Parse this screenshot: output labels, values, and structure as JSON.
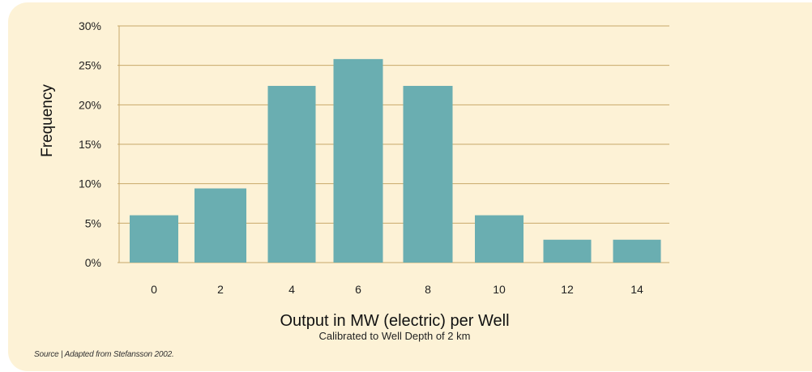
{
  "chart_data": {
    "type": "bar",
    "categories": [
      "0",
      "2",
      "4",
      "6",
      "8",
      "10",
      "12",
      "14"
    ],
    "values": [
      6,
      9.4,
      22.4,
      25.8,
      22.4,
      6,
      2.9,
      2.9
    ],
    "ylim": [
      0,
      30
    ],
    "yticks": [
      "0%",
      "5%",
      "10%",
      "15%",
      "20%",
      "25%",
      "30%"
    ],
    "ylabel": "Frequency",
    "xlabel": "Output in MW (electric) per Well",
    "subtitle": "Calibrated to Well Depth of 2 km",
    "grid": true,
    "bar_color": "#6aaeb1",
    "grid_color": "#c8a86a"
  },
  "source": "Source | Adapted from Stefansson 2002."
}
